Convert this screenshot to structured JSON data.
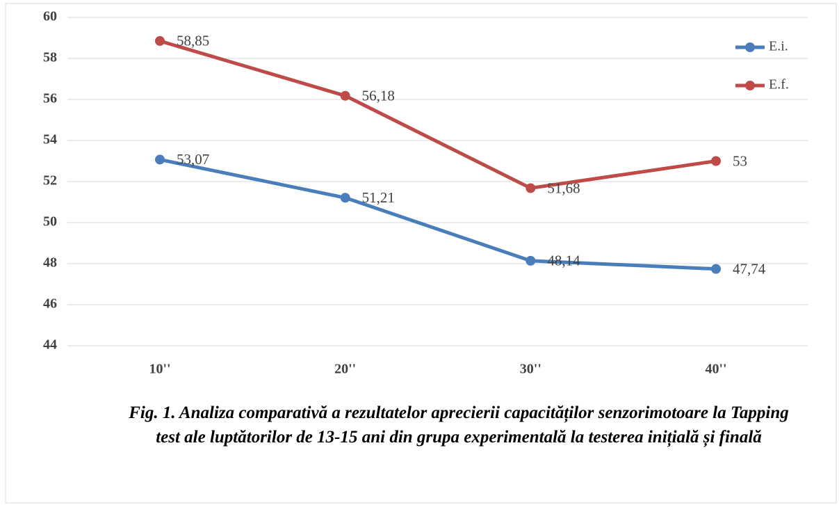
{
  "chart_data": {
    "type": "line",
    "title": "Fig. 1. Analiza comparativă a rezultatelor aprecierii capacităților senzorimotoare la Tapping test ale luptătorilor de 13-15 ani din grupa experimentală la testerea inițială și finală",
    "categories": [
      "10''",
      "20''",
      "30''",
      "40''"
    ],
    "series": [
      {
        "name": "E.i.",
        "color": "#4a7ebb",
        "values": [
          53.07,
          51.21,
          48.14,
          47.74
        ],
        "value_labels": [
          "53,07",
          "51,21",
          "48,14",
          "47,74"
        ]
      },
      {
        "name": "E.f.",
        "color": "#be4b48",
        "values": [
          58.85,
          56.18,
          51.68,
          53
        ],
        "value_labels": [
          "58,85",
          "56,18",
          "51,68",
          "53"
        ]
      }
    ],
    "ylim": [
      44,
      60
    ],
    "yticks": [
      44,
      46,
      48,
      50,
      52,
      54,
      56,
      58,
      60
    ],
    "grid": true,
    "legend": "right"
  }
}
